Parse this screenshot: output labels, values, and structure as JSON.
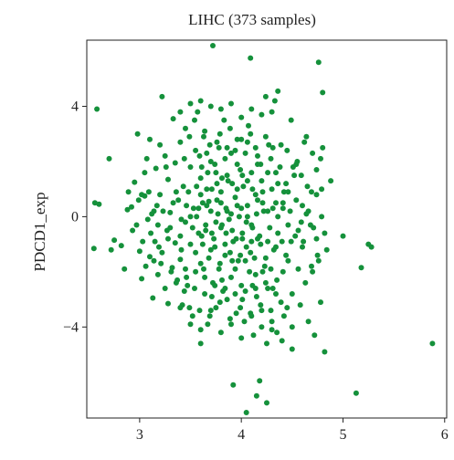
{
  "chart_data": {
    "type": "scatter",
    "title": "LIHC (373 samples)",
    "xlabel": "",
    "ylabel": "PDCD1_exp",
    "xlim": [
      2.48,
      6.02
    ],
    "ylim": [
      -7.3,
      6.4
    ],
    "xticks": [
      3,
      4,
      5,
      6
    ],
    "yticks": [
      4,
      0,
      -4
    ],
    "ytick_labels": [
      "4",
      "0",
      "−4"
    ],
    "grid": false,
    "point_color": "#15913b",
    "points": [
      [
        2.58,
        3.9
      ],
      [
        2.56,
        0.5
      ],
      [
        2.6,
        0.45
      ],
      [
        2.55,
        -1.15
      ],
      [
        2.7,
        2.1
      ],
      [
        2.75,
        -0.85
      ],
      [
        2.72,
        -1.2
      ],
      [
        2.82,
        -1.05
      ],
      [
        2.85,
        -1.9
      ],
      [
        2.88,
        0.25
      ],
      [
        2.92,
        0.35
      ],
      [
        2.95,
        1.25
      ],
      [
        2.97,
        -0.3
      ],
      [
        2.98,
        3.0
      ],
      [
        3.0,
        -1.25
      ],
      [
        3.02,
        -2.25
      ],
      [
        3.05,
        1.6
      ],
      [
        3.05,
        0.75
      ],
      [
        3.08,
        -0.1
      ],
      [
        3.1,
        -1.45
      ],
      [
        3.1,
        2.8
      ],
      [
        3.12,
        0.1
      ],
      [
        3.13,
        -2.95
      ],
      [
        3.15,
        -0.9
      ],
      [
        3.16,
        1.75
      ],
      [
        3.18,
        -2.1
      ],
      [
        3.2,
        2.6
      ],
      [
        3.2,
        0.8
      ],
      [
        3.22,
        4.35
      ],
      [
        3.22,
        -1.3
      ],
      [
        3.25,
        2.2
      ],
      [
        3.27,
        -0.5
      ],
      [
        3.28,
        1.35
      ],
      [
        3.28,
        -3.15
      ],
      [
        3.3,
        0.15
      ],
      [
        3.32,
        -1.85
      ],
      [
        3.33,
        3.55
      ],
      [
        3.35,
        -0.95
      ],
      [
        3.35,
        1.95
      ],
      [
        3.37,
        -2.3
      ],
      [
        3.38,
        0.6
      ],
      [
        3.4,
        2.7
      ],
      [
        3.4,
        -1.55
      ],
      [
        3.42,
        -3.2
      ],
      [
        3.43,
        1.1
      ],
      [
        3.45,
        -0.2
      ],
      [
        3.45,
        3.2
      ],
      [
        3.47,
        -2.5
      ],
      [
        3.48,
        0.9
      ],
      [
        3.5,
        1.8
      ],
      [
        3.5,
        -1.0
      ],
      [
        3.52,
        -3.6
      ],
      [
        3.53,
        0.3
      ],
      [
        3.55,
        2.4
      ],
      [
        3.55,
        -2.0
      ],
      [
        3.57,
        3.8
      ],
      [
        3.58,
        -0.6
      ],
      [
        3.6,
        1.4
      ],
      [
        3.6,
        -4.6
      ],
      [
        3.6,
        -1.7
      ],
      [
        3.62,
        0.5
      ],
      [
        3.63,
        2.9
      ],
      [
        3.64,
        -2.8
      ],
      [
        3.65,
        -0.3
      ],
      [
        3.66,
        1.0
      ],
      [
        3.67,
        -3.9
      ],
      [
        3.68,
        0.55
      ],
      [
        3.7,
        -1.2
      ],
      [
        3.7,
        2.0
      ],
      [
        3.72,
        6.2
      ],
      [
        3.72,
        -2.4
      ],
      [
        3.73,
        -0.8
      ],
      [
        3.75,
        1.6
      ],
      [
        3.75,
        -3.3
      ],
      [
        3.77,
        0.1
      ],
      [
        3.78,
        2.5
      ],
      [
        3.78,
        -1.9
      ],
      [
        3.8,
        -0.4
      ],
      [
        3.8,
        0.9
      ],
      [
        3.82,
        -2.7
      ],
      [
        3.83,
        3.5
      ],
      [
        3.84,
        -1.4
      ],
      [
        3.85,
        0.3
      ],
      [
        3.86,
        -3.0
      ],
      [
        3.87,
        1.3
      ],
      [
        3.88,
        -0.1
      ],
      [
        3.9,
        -2.2
      ],
      [
        3.9,
        2.3
      ],
      [
        3.92,
        -6.1
      ],
      [
        3.92,
        -0.9
      ],
      [
        3.94,
        0.7
      ],
      [
        3.95,
        -3.5
      ],
      [
        3.96,
        1.9
      ],
      [
        3.97,
        -1.6
      ],
      [
        3.98,
        0.0
      ],
      [
        4.0,
        2.8
      ],
      [
        4.0,
        -2.5
      ],
      [
        4.01,
        -0.6
      ],
      [
        4.02,
        1.1
      ],
      [
        4.03,
        -3.8
      ],
      [
        4.05,
        -1.1
      ],
      [
        4.05,
        -7.1
      ],
      [
        4.06,
        0.4
      ],
      [
        4.07,
        3.3
      ],
      [
        4.08,
        -2.0
      ],
      [
        4.09,
        5.75
      ],
      [
        4.1,
        -0.3
      ],
      [
        4.1,
        1.6
      ],
      [
        4.12,
        -4.3
      ],
      [
        4.13,
        -1.5
      ],
      [
        4.14,
        0.8
      ],
      [
        4.15,
        -6.5
      ],
      [
        4.15,
        -2.9
      ],
      [
        4.16,
        2.2
      ],
      [
        4.18,
        -5.95
      ],
      [
        4.18,
        -0.7
      ],
      [
        4.2,
        1.3
      ],
      [
        4.2,
        -3.4
      ],
      [
        4.22,
        0.2
      ],
      [
        4.23,
        -1.8
      ],
      [
        4.24,
        4.35
      ],
      [
        4.25,
        -6.75
      ],
      [
        4.26,
        -2.6
      ],
      [
        4.27,
        2.6
      ],
      [
        4.28,
        -0.4
      ],
      [
        4.3,
        1.0
      ],
      [
        4.3,
        -4.1
      ],
      [
        4.32,
        -1.2
      ],
      [
        4.33,
        4.2
      ],
      [
        4.34,
        0.5
      ],
      [
        4.35,
        -2.3
      ],
      [
        4.36,
        4.55
      ],
      [
        4.38,
        1.8
      ],
      [
        4.4,
        -0.9
      ],
      [
        4.42,
        -3.6
      ],
      [
        4.42,
        0.9
      ],
      [
        4.45,
        2.4
      ],
      [
        4.46,
        -1.6
      ],
      [
        4.48,
        0.2
      ],
      [
        4.5,
        -2.8
      ],
      [
        4.5,
        -4.8
      ],
      [
        4.52,
        1.5
      ],
      [
        4.53,
        -0.7
      ],
      [
        4.55,
        2.0
      ],
      [
        4.56,
        -1.9
      ],
      [
        4.58,
        -3.2
      ],
      [
        4.6,
        0.4
      ],
      [
        4.6,
        -1.1
      ],
      [
        4.62,
        2.7
      ],
      [
        4.63,
        -2.4
      ],
      [
        4.65,
        1.1
      ],
      [
        4.66,
        -3.8
      ],
      [
        4.68,
        -0.3
      ],
      [
        4.7,
        2.3
      ],
      [
        4.7,
        -2.0
      ],
      [
        4.72,
        -4.3
      ],
      [
        4.74,
        0.8
      ],
      [
        4.75,
        -1.4
      ],
      [
        4.76,
        5.6
      ],
      [
        4.78,
        2.1
      ],
      [
        4.78,
        -3.1
      ],
      [
        4.8,
        4.5
      ],
      [
        4.8,
        2.5
      ],
      [
        4.82,
        -0.6
      ],
      [
        4.82,
        -4.9
      ],
      [
        5.0,
        -0.7
      ],
      [
        5.13,
        -6.4
      ],
      [
        5.18,
        -1.85
      ],
      [
        5.25,
        -1.0
      ],
      [
        5.28,
        -1.1
      ],
      [
        5.88,
        -4.6
      ],
      [
        3.6,
        0.8
      ],
      [
        3.65,
        -0.5
      ],
      [
        3.7,
        0.2
      ],
      [
        3.75,
        -0.2
      ],
      [
        3.8,
        0.5
      ],
      [
        3.85,
        -0.6
      ],
      [
        3.9,
        0.1
      ],
      [
        3.95,
        -0.8
      ],
      [
        4.0,
        0.3
      ],
      [
        4.05,
        -0.2
      ],
      [
        4.1,
        -0.9
      ],
      [
        4.15,
        0.1
      ],
      [
        3.55,
        -1.3
      ],
      [
        3.62,
        -1.0
      ],
      [
        3.68,
        -1.5
      ],
      [
        3.74,
        -1.1
      ],
      [
        3.79,
        -1.7
      ],
      [
        3.84,
        -1.0
      ],
      [
        3.89,
        -1.3
      ],
      [
        3.94,
        -1.9
      ],
      [
        3.99,
        -1.4
      ],
      [
        4.04,
        -1.6
      ],
      [
        4.09,
        -1.3
      ],
      [
        4.14,
        -2.1
      ],
      [
        4.19,
        -1.0
      ],
      [
        4.24,
        -1.5
      ],
      [
        4.29,
        -1.9
      ],
      [
        4.34,
        -1.1
      ],
      [
        3.45,
        -1.9
      ],
      [
        3.5,
        0.0
      ],
      [
        3.52,
        -0.4
      ],
      [
        3.58,
        0.3
      ],
      [
        3.63,
        -1.9
      ],
      [
        3.67,
        1.6
      ],
      [
        3.71,
        -2.9
      ],
      [
        3.76,
        1.2
      ],
      [
        3.81,
        -2.3
      ],
      [
        3.86,
        1.5
      ],
      [
        3.91,
        -1.6
      ],
      [
        3.96,
        1.0
      ],
      [
        4.01,
        -3.0
      ],
      [
        4.06,
        1.3
      ],
      [
        4.11,
        -2.5
      ],
      [
        4.16,
        0.6
      ],
      [
        4.21,
        -2.0
      ],
      [
        4.26,
        0.2
      ],
      [
        4.31,
        -2.6
      ],
      [
        4.36,
        0.0
      ],
      [
        4.41,
        -2.0
      ],
      [
        4.46,
        -0.3
      ],
      [
        3.4,
        -0.7
      ],
      [
        3.36,
        0.9
      ],
      [
        3.3,
        -0.4
      ],
      [
        3.26,
        1.8
      ],
      [
        3.21,
        -1.7
      ],
      [
        3.17,
        0.4
      ],
      [
        3.11,
        -0.6
      ],
      [
        3.07,
        2.1
      ],
      [
        3.03,
        -0.9
      ],
      [
        2.99,
        0.6
      ],
      [
        3.44,
        2.1
      ],
      [
        3.49,
        2.9
      ],
      [
        3.54,
        3.5
      ],
      [
        3.59,
        2.2
      ],
      [
        3.64,
        3.1
      ],
      [
        3.69,
        2.6
      ],
      [
        3.74,
        1.9
      ],
      [
        3.79,
        3.0
      ],
      [
        3.84,
        2.1
      ],
      [
        3.89,
        3.2
      ],
      [
        3.94,
        2.4
      ],
      [
        3.99,
        1.7
      ],
      [
        4.04,
        2.3
      ],
      [
        4.09,
        3.0
      ],
      [
        4.14,
        2.5
      ],
      [
        4.19,
        1.9
      ],
      [
        4.24,
        2.9
      ],
      [
        4.29,
        2.1
      ],
      [
        4.34,
        1.6
      ],
      [
        4.39,
        2.6
      ],
      [
        3.44,
        -2.7
      ],
      [
        3.49,
        -3.3
      ],
      [
        3.54,
        -2.6
      ],
      [
        3.59,
        -3.4
      ],
      [
        3.64,
        -2.2
      ],
      [
        3.69,
        -3.6
      ],
      [
        3.74,
        -2.5
      ],
      [
        3.79,
        -3.1
      ],
      [
        3.84,
        -2.6
      ],
      [
        3.89,
        -3.7
      ],
      [
        3.94,
        -2.8
      ],
      [
        3.99,
        -3.3
      ],
      [
        4.04,
        -2.7
      ],
      [
        4.09,
        -3.5
      ],
      [
        4.14,
        -2.6
      ],
      [
        4.19,
        -3.2
      ],
      [
        4.24,
        -2.4
      ],
      [
        4.29,
        -3.4
      ],
      [
        4.34,
        -2.8
      ],
      [
        4.39,
        -3.1
      ],
      [
        4.44,
        -1.4
      ],
      [
        4.49,
        -0.9
      ],
      [
        4.54,
        0.6
      ],
      [
        4.59,
        -0.2
      ],
      [
        4.64,
        0.1
      ],
      [
        4.69,
        -1.8
      ],
      [
        4.74,
        -0.8
      ],
      [
        4.79,
        0.0
      ],
      [
        4.84,
        -1.2
      ],
      [
        4.88,
        1.3
      ],
      [
        4.44,
        1.2
      ],
      [
        4.49,
        3.5
      ],
      [
        4.54,
        1.9
      ],
      [
        4.59,
        1.5
      ],
      [
        4.64,
        2.9
      ],
      [
        4.69,
        0.9
      ],
      [
        4.74,
        1.7
      ],
      [
        4.79,
        1.0
      ],
      [
        3.25,
        -2.6
      ],
      [
        3.31,
        -2.0
      ],
      [
        3.36,
        -2.4
      ],
      [
        3.41,
        -1.2
      ],
      [
        3.46,
        -2.2
      ],
      [
        3.18,
        -0.3
      ],
      [
        3.14,
        -1.6
      ],
      [
        3.09,
        0.9
      ],
      [
        3.06,
        -1.8
      ],
      [
        3.02,
        0.8
      ],
      [
        2.93,
        -0.5
      ],
      [
        2.89,
        0.9
      ],
      [
        3.6,
        4.2
      ],
      [
        3.7,
        4.0
      ],
      [
        3.8,
        3.9
      ],
      [
        3.9,
        4.1
      ],
      [
        4.0,
        3.6
      ],
      [
        4.1,
        3.9
      ],
      [
        4.2,
        3.7
      ],
      [
        3.5,
        4.1
      ],
      [
        3.4,
        3.8
      ],
      [
        4.3,
        3.8
      ],
      [
        3.6,
        -4.1
      ],
      [
        3.7,
        -3.4
      ],
      [
        3.8,
        -4.2
      ],
      [
        3.9,
        -3.9
      ],
      [
        4.0,
        -4.4
      ],
      [
        4.1,
        -3.6
      ],
      [
        4.2,
        -4.0
      ],
      [
        4.3,
        -3.8
      ],
      [
        4.4,
        -4.5
      ],
      [
        4.5,
        -4.0
      ],
      [
        3.5,
        -3.9
      ],
      [
        3.4,
        -3.3
      ],
      [
        4.45,
        -3.3
      ],
      [
        4.35,
        -4.2
      ],
      [
        4.25,
        -4.6
      ],
      [
        3.56,
        0.0
      ],
      [
        3.61,
        -0.7
      ],
      [
        3.66,
        0.4
      ],
      [
        3.71,
        -0.6
      ],
      [
        3.76,
        0.6
      ],
      [
        3.81,
        -0.3
      ],
      [
        3.86,
        0.2
      ],
      [
        3.91,
        -0.5
      ],
      [
        3.96,
        0.4
      ],
      [
        4.01,
        -0.8
      ],
      [
        4.06,
        0.0
      ],
      [
        4.11,
        -0.4
      ],
      [
        4.16,
        -0.8
      ],
      [
        4.21,
        0.5
      ],
      [
        4.26,
        -0.9
      ],
      [
        4.31,
        0.3
      ],
      [
        4.36,
        -0.6
      ],
      [
        4.41,
        0.5
      ],
      [
        3.46,
        0.4
      ],
      [
        3.41,
        -0.1
      ],
      [
        3.33,
        0.5
      ],
      [
        3.28,
        -0.8
      ],
      [
        3.23,
        0.2
      ],
      [
        3.19,
        -1.1
      ],
      [
        3.14,
        0.2
      ],
      [
        3.56,
        1.1
      ],
      [
        3.61,
        1.8
      ],
      [
        3.66,
        2.3
      ],
      [
        3.71,
        1.0
      ],
      [
        3.76,
        2.7
      ],
      [
        3.81,
        1.4
      ],
      [
        3.86,
        2.5
      ],
      [
        3.91,
        1.2
      ],
      [
        3.96,
        2.8
      ],
      [
        4.01,
        1.5
      ],
      [
        4.06,
        2.7
      ],
      [
        4.11,
        1.0
      ],
      [
        4.16,
        1.9
      ],
      [
        4.21,
        0.9
      ],
      [
        4.26,
        1.6
      ],
      [
        4.31,
        2.5
      ],
      [
        4.36,
        1.2
      ],
      [
        4.41,
        0.3
      ],
      [
        4.46,
        0.9
      ],
      [
        4.51,
        1.8
      ],
      [
        4.56,
        -0.5
      ],
      [
        4.61,
        -0.9
      ],
      [
        4.66,
        0.2
      ],
      [
        4.71,
        -0.4
      ],
      [
        4.76,
        -1.6
      ]
    ]
  }
}
